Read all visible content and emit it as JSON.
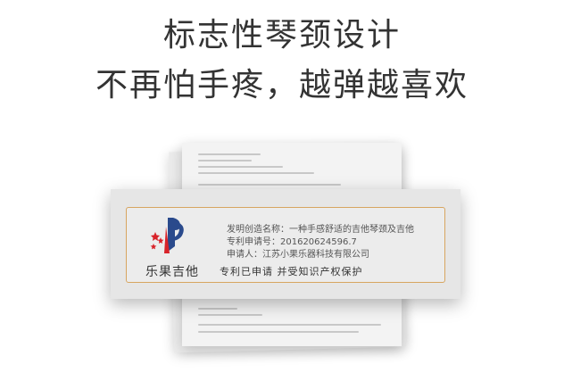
{
  "headline": {
    "line1": "标志性琴颈设计",
    "line2": "不再怕手疼，越弹越喜欢"
  },
  "card": {
    "brand": "乐果吉他",
    "invention_label": "发明创造名称：",
    "invention_value": "一种手感舒适的吉他琴颈及吉他",
    "application_label": "专利申请号：",
    "application_value": "201620624596.7",
    "applicant_label": "申请人：",
    "applicant_value": "江苏小果乐器科技有限公司",
    "note": "专利已申请 并受知识产权保护"
  },
  "colors": {
    "frame": "#d7a560",
    "logo_blue": "#2a4a8c",
    "logo_red": "#d8232a"
  },
  "icons": {
    "logo": "patent-office-emblem"
  }
}
